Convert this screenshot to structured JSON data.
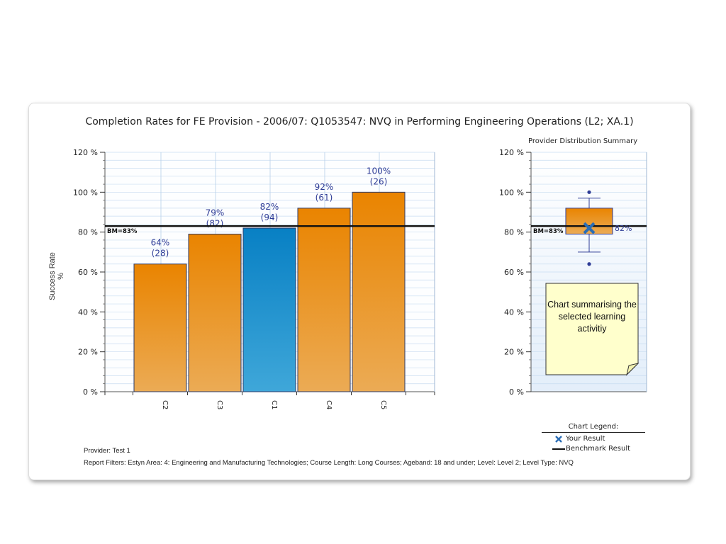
{
  "title": "Completion Rates for FE Provision - 2006/07: Q1053547: NVQ in Performing Engineering Operations (L2; XA.1)",
  "distribution_title": "Provider Distribution Summary",
  "note_text": "Chart summarising the selected learning activitiy",
  "footer": {
    "provider": "Provider: Test 1",
    "filters": "Report Filters: Estyn Area: 4: Engineering and Manufacturing Technologies; Course Length: Long Courses; Ageband: 18 and under; Level: Level 2; Level Type: NVQ"
  },
  "legend": {
    "title": "Chart Legend:",
    "your_result": "Your Result",
    "benchmark": "Benchmark Result"
  },
  "colors": {
    "orange": "#e8870a",
    "blue": "#0a82c6",
    "label": "#2e3c96",
    "grid": "#c8dcf0"
  },
  "chart_data": [
    {
      "type": "bar",
      "ylabel": "Success Rate %",
      "ylim": [
        0,
        120
      ],
      "yticks": [
        "0 %",
        "20 %",
        "40 %",
        "60 %",
        "80 %",
        "100 %",
        "120 %"
      ],
      "categories": [
        "C2",
        "C3",
        "C1",
        "C4",
        "C5"
      ],
      "values": [
        64,
        79,
        82,
        92,
        100
      ],
      "value_labels": [
        "64%",
        "79%",
        "82%",
        "92%",
        "100%"
      ],
      "counts": [
        "(28)",
        "(82)",
        "(94)",
        "(61)",
        "(26)"
      ],
      "highlight": "C1",
      "benchmark": 83,
      "benchmark_label": "BM=83%",
      "grid": true
    },
    {
      "type": "box",
      "title": "Provider Distribution Summary",
      "ylim": [
        0,
        120
      ],
      "yticks": [
        "0 %",
        "20 %",
        "40 %",
        "60 %",
        "80 %",
        "100 %",
        "120 %"
      ],
      "whisker_low": 70,
      "q1": 79,
      "q3": 92,
      "whisker_high": 97,
      "outliers": [
        100,
        64
      ],
      "your_result": 82,
      "your_result_label": "82%",
      "benchmark": 83,
      "benchmark_label": "BM=83%",
      "grid": true
    }
  ]
}
